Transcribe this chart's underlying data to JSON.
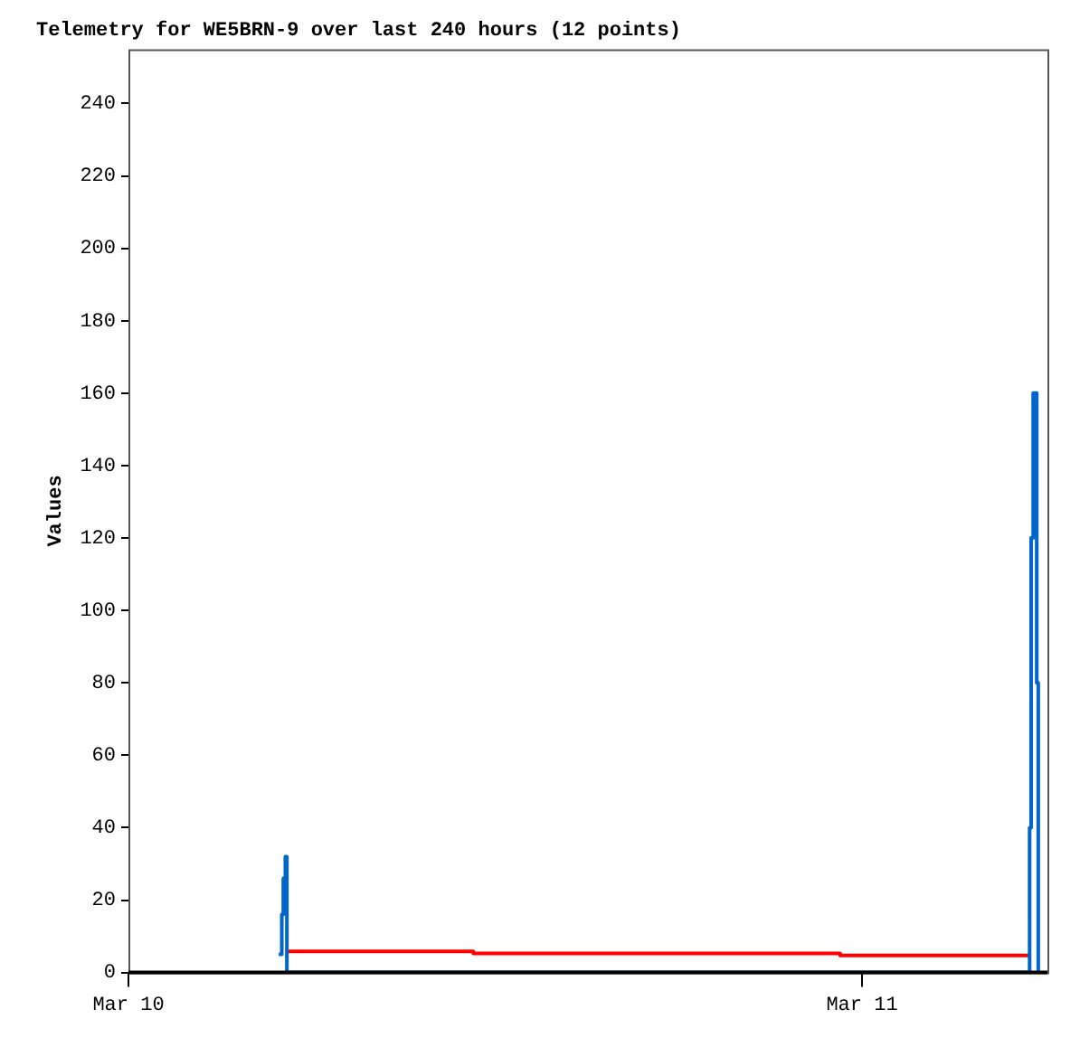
{
  "chart_data": {
    "type": "step",
    "title": "Telemetry for WE5BRN-9 over last 240 hours (12 points)",
    "ylabel": "Values",
    "xlim": [
      "--03-10T00:00",
      "--03-11T06:04"
    ],
    "xticks": [
      {
        "value": "--03-10",
        "label": "Mar 10"
      },
      {
        "value": "--03-11",
        "label": "Mar 11"
      }
    ],
    "ylim": [
      0,
      255
    ],
    "yticks": [
      0,
      20,
      40,
      60,
      80,
      100,
      120,
      140,
      160,
      180,
      200,
      220,
      240
    ],
    "series": [
      {
        "color": "#0066cc",
        "x": [
          "--03-10T04:55",
          "--03-10T05:01",
          "--03-10T05:04",
          "--03-10T05:08",
          "--03-10T05:11",
          "--03-11T05:29",
          "--03-11T05:32",
          "--03-11T05:36",
          "--03-11T05:43",
          "--03-11T05:46"
        ],
        "values": [
          5,
          16,
          26,
          32,
          0,
          40,
          120,
          160,
          80,
          0
        ]
      },
      {
        "color": "#ff0000",
        "x": [
          "--03-10T05:10",
          "--03-10T11:17",
          "--03-10T23:17",
          "--03-11T05:31"
        ],
        "values": [
          5.8,
          5.3,
          4.7,
          4.7
        ]
      }
    ],
    "grid": false,
    "legend": false,
    "marker": "none"
  }
}
